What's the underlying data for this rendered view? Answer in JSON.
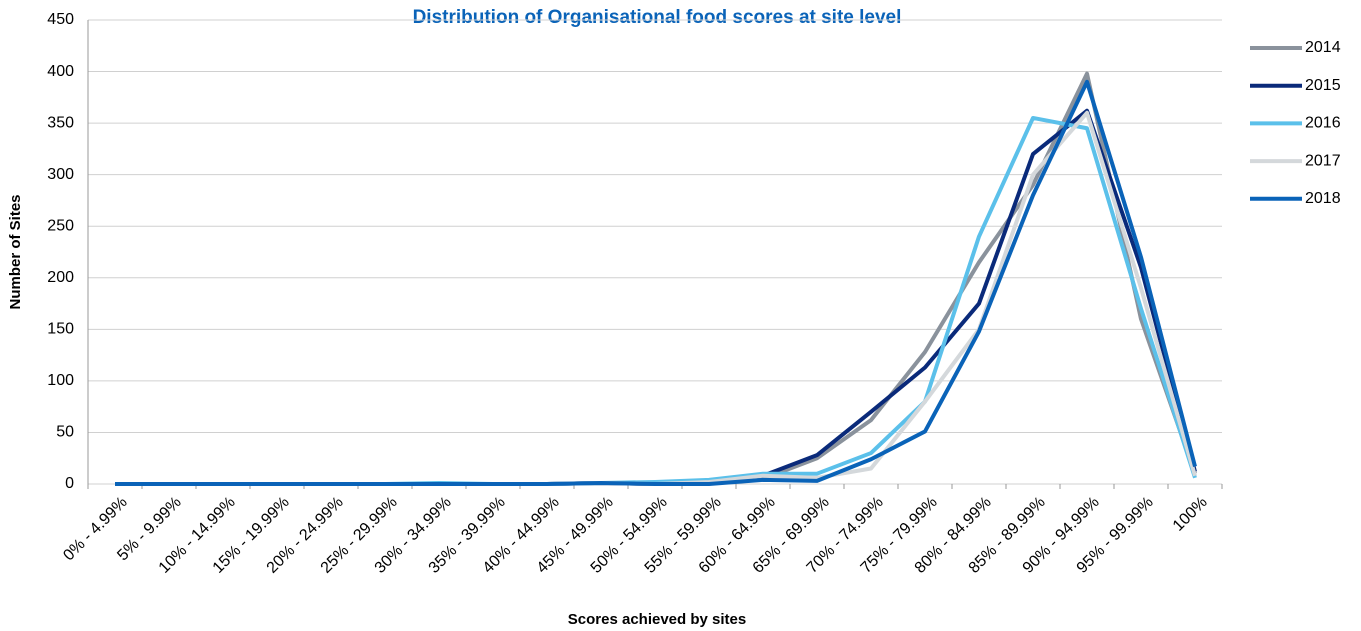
{
  "chart_data": {
    "type": "line",
    "title": "Distribution of Organisational food scores at site level",
    "x_label": "Scores achieved by sites",
    "y_label": "Number of Sites",
    "categories": [
      "0% - 4.99%",
      "5% - 9.99%",
      "10% - 14.99%",
      "15% - 19.99%",
      "20% - 24.99%",
      "25% - 29.99%",
      "30% - 34.99%",
      "35% - 39.99%",
      "40% - 44.99%",
      "45% - 49.99%",
      "50% - 54.99%",
      "55% - 59.99%",
      "60% - 64.99%",
      "65% - 69.99%",
      "70% - 74.99%",
      "75% - 79.99%",
      "80% - 84.99%",
      "85% - 89.99%",
      "90% - 94.99%",
      "95% - 99.99%",
      "100%"
    ],
    "series": [
      {
        "name": "2014",
        "color": "#8a929c",
        "values": [
          0,
          0,
          0,
          0,
          0,
          0,
          0,
          0,
          0,
          1,
          0,
          1,
          5,
          25,
          62,
          128,
          215,
          290,
          398,
          160,
          10
        ]
      },
      {
        "name": "2015",
        "color": "#0a2a7a",
        "values": [
          0,
          0,
          0,
          0,
          0,
          0,
          0,
          0,
          0,
          1,
          0,
          1,
          8,
          28,
          70,
          113,
          175,
          320,
          362,
          210,
          12
        ]
      },
      {
        "name": "2016",
        "color": "#5bc0ea",
        "values": [
          0,
          0,
          0,
          0,
          0,
          0,
          1,
          0,
          0,
          1,
          2,
          4,
          10,
          10,
          30,
          80,
          240,
          355,
          345,
          170,
          6
        ]
      },
      {
        "name": "2017",
        "color": "#d4d8db",
        "values": [
          0,
          0,
          0,
          0,
          0,
          0,
          0,
          0,
          0,
          1,
          0,
          2,
          8,
          6,
          15,
          80,
          150,
          300,
          360,
          190,
          8
        ]
      },
      {
        "name": "2018",
        "color": "#0a63b8",
        "values": [
          0,
          0,
          0,
          0,
          0,
          0,
          0,
          0,
          0,
          1,
          0,
          0,
          4,
          3,
          24,
          51,
          148,
          280,
          390,
          220,
          17
        ]
      }
    ],
    "ylim": [
      0,
      450
    ],
    "yticks": [
      0,
      50,
      100,
      150,
      200,
      250,
      300,
      350,
      400,
      450
    ],
    "grid": true
  }
}
